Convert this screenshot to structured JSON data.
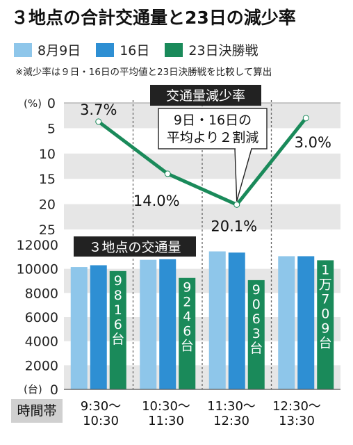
{
  "title": "３地点の合計交通量と23日の減少率",
  "legend": [
    {
      "label": "8月9日",
      "color": "#8ec6ea"
    },
    {
      "label": "16日",
      "color": "#2e8fd3"
    },
    {
      "label": "23日決勝戦",
      "color": "#1a8a5a"
    }
  ],
  "note": "※減少率は９日・16日の平均値と23日決勝戦を比較して算出",
  "time_label": "時間帯",
  "chart_data": [
    {
      "type": "line",
      "title": "交通量減少率",
      "ylabel": "(%)",
      "ylim": [
        0,
        25
      ],
      "y_inverted": true,
      "yticks": [
        "0",
        "5",
        "10",
        "15",
        "20",
        "25"
      ],
      "categories": [
        "9:30〜10:30",
        "10:30〜11:30",
        "11:30〜12:30",
        "12:30〜13:30"
      ],
      "values": [
        3.7,
        14.0,
        20.1,
        3.0
      ],
      "data_labels": [
        "3.7%",
        "14.0%",
        "20.1%",
        "3.0%"
      ],
      "annotation": [
        "9日・16日の",
        "平均より２割減"
      ],
      "color": "#1a8a5a"
    },
    {
      "type": "bar",
      "title": "３地点の交通量",
      "ylabel": "(台)",
      "ylim": [
        0,
        12000
      ],
      "yticks": [
        "0",
        "2000",
        "4000",
        "6000",
        "8000",
        "10000",
        "12000"
      ],
      "categories": [
        "9:30〜10:30",
        "10:30〜11:30",
        "11:30〜12:30",
        "12:30〜13:30"
      ],
      "category_lines": [
        [
          "9:30〜",
          "10:30"
        ],
        [
          "10:30〜",
          "11:30"
        ],
        [
          "11:30〜",
          "12:30"
        ],
        [
          "12:30〜",
          "13:30"
        ]
      ],
      "series": [
        {
          "name": "8月9日",
          "color": "#8ec6ea",
          "values": [
            10150,
            10750,
            11450,
            11050
          ]
        },
        {
          "name": "16日",
          "color": "#2e8fd3",
          "values": [
            10300,
            10800,
            11350,
            11050
          ]
        },
        {
          "name": "23日決勝戦",
          "color": "#1a8a5a",
          "values": [
            9816,
            9246,
            9063,
            10709
          ]
        }
      ],
      "bar_labels": [
        "9816台",
        "9246台",
        "9063台",
        "1万709台"
      ]
    }
  ]
}
